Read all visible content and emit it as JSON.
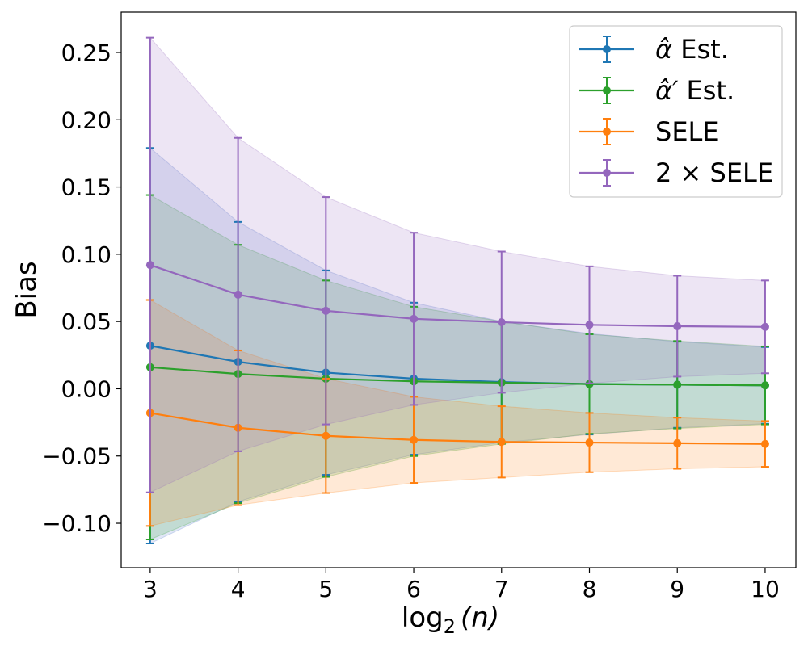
{
  "chart_data": {
    "type": "line",
    "x": [
      3,
      4,
      5,
      6,
      7,
      8,
      9,
      10
    ],
    "xlabel_main": "log",
    "xlabel_sub": "2",
    "xlabel_arg": "(n)",
    "ylabel": "Bias",
    "xlim": [
      2.67,
      10.35
    ],
    "ylim": [
      -0.133,
      0.28
    ],
    "yticks": [
      -0.1,
      -0.05,
      0.0,
      0.05,
      0.1,
      0.15,
      0.2,
      0.25
    ],
    "ytick_labels": [
      "−0.10",
      "−0.05",
      "0.00",
      "0.05",
      "0.10",
      "0.15",
      "0.20",
      "0.25"
    ],
    "xticks": [
      3,
      4,
      5,
      6,
      7,
      8,
      9,
      10
    ],
    "xtick_labels": [
      "3",
      "4",
      "5",
      "6",
      "7",
      "8",
      "9",
      "10"
    ],
    "legend_position": "top-right",
    "series": [
      {
        "name": "α̂ Est.",
        "legend_sym": "α̂",
        "legend_rest": " Est.",
        "color": "#1f77b4",
        "fill": "#4c72c9",
        "values": [
          0.032,
          0.02,
          0.012,
          0.0075,
          0.005,
          0.0035,
          0.003,
          0.0025
        ],
        "errors": [
          0.147,
          0.104,
          0.076,
          0.0565,
          0.045,
          0.0375,
          0.032,
          0.0285
        ]
      },
      {
        "name": "α̂′ Est.",
        "legend_sym": "α̂′",
        "legend_rest": " Est.",
        "color": "#2ca02c",
        "fill": "#2ca02c",
        "values": [
          0.016,
          0.011,
          0.0075,
          0.0055,
          0.0045,
          0.0035,
          0.003,
          0.0025
        ],
        "errors": [
          0.128,
          0.096,
          0.073,
          0.0555,
          0.0455,
          0.037,
          0.0325,
          0.029
        ]
      },
      {
        "name": "SELE",
        "legend_sym": "",
        "legend_rest": "SELE",
        "color": "#ff7f0e",
        "fill": "#ff7f0e",
        "values": [
          -0.018,
          -0.029,
          -0.035,
          -0.038,
          -0.0395,
          -0.04,
          -0.0405,
          -0.041
        ],
        "errors": [
          0.084,
          0.0575,
          0.0425,
          0.032,
          0.0265,
          0.022,
          0.019,
          0.017
        ]
      },
      {
        "name": "2 × SELE",
        "legend_sym": "",
        "legend_rest": "2 × SELE",
        "color": "#9467bd",
        "fill": "#9467bd",
        "values": [
          0.092,
          0.07,
          0.058,
          0.052,
          0.0495,
          0.0475,
          0.0465,
          0.046
        ],
        "errors": [
          0.169,
          0.1165,
          0.0845,
          0.064,
          0.0525,
          0.0435,
          0.0375,
          0.0345
        ]
      }
    ]
  }
}
